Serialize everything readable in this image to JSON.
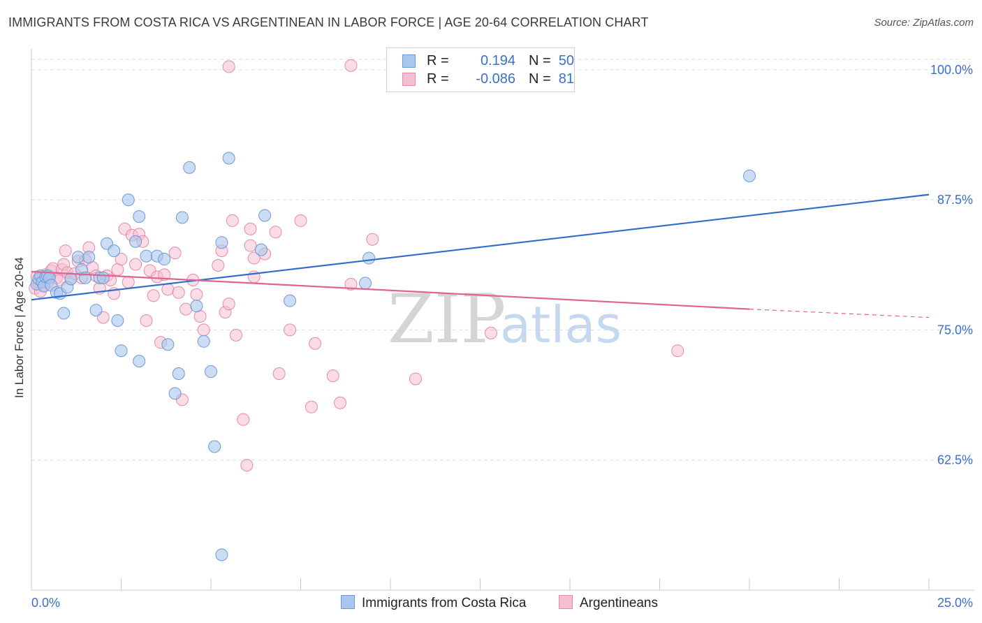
{
  "title": "IMMIGRANTS FROM COSTA RICA VS ARGENTINEAN IN LABOR FORCE | AGE 20-64 CORRELATION CHART",
  "source": "Source: ZipAtlas.com",
  "watermark": {
    "zip": "ZIP",
    "atlas": "atlas"
  },
  "legend": {
    "rows": [
      {
        "r_label": "R =",
        "r_value": "0.194",
        "n_label": "N =",
        "n_value": "50"
      },
      {
        "r_label": "R =",
        "r_value": "-0.086",
        "n_label": "N =",
        "n_value": "81"
      }
    ]
  },
  "colors": {
    "blue_fill": "#a9c6ef",
    "blue_stroke": "#6f99d6",
    "blue_line": "#2f6cc9",
    "pink_fill": "#f6bfd1",
    "pink_stroke": "#e889a8",
    "pink_line": "#e0648e",
    "tick_text": "#3b6fc9",
    "grid": "#dddddd"
  },
  "chart_data": {
    "type": "scatter",
    "title": "IMMIGRANTS FROM COSTA RICA VS ARGENTINEAN IN LABOR FORCE | AGE 20-64 CORRELATION CHART",
    "xlabel": "",
    "ylabel": "In Labor Force | Age 20-64",
    "xlim": [
      0,
      25
    ],
    "ylim": [
      50.0,
      102.0
    ],
    "x_tick_labels": [
      "0.0%",
      "25.0%"
    ],
    "y_ticks": [
      62.5,
      75.0,
      87.5,
      100.0
    ],
    "y_tick_labels": [
      "62.5%",
      "75.0%",
      "87.5%",
      "100.0%"
    ],
    "series": [
      {
        "name": "Immigrants from Costa Rica",
        "r": 0.194,
        "n": 50,
        "trend": {
          "x0": 0.0,
          "y0": 77.9,
          "x1": 25.0,
          "y1": 88.0
        },
        "points": [
          [
            0.15,
            79.4
          ],
          [
            0.2,
            79.9
          ],
          [
            0.25,
            80.2
          ],
          [
            0.3,
            79.6
          ],
          [
            0.35,
            79.2
          ],
          [
            0.4,
            80.1
          ],
          [
            0.45,
            80.2
          ],
          [
            0.5,
            80.0
          ],
          [
            0.55,
            79.3
          ],
          [
            0.7,
            78.6
          ],
          [
            0.8,
            78.5
          ],
          [
            0.9,
            76.6
          ],
          [
            1.0,
            79.1
          ],
          [
            1.1,
            79.9
          ],
          [
            1.3,
            82.0
          ],
          [
            1.4,
            80.8
          ],
          [
            1.5,
            80.0
          ],
          [
            1.6,
            82.0
          ],
          [
            1.8,
            76.9
          ],
          [
            1.9,
            80.0
          ],
          [
            2.0,
            80.0
          ],
          [
            2.1,
            83.3
          ],
          [
            2.3,
            82.6
          ],
          [
            2.4,
            75.9
          ],
          [
            2.5,
            73.0
          ],
          [
            2.9,
            83.5
          ],
          [
            3.0,
            72.0
          ],
          [
            3.2,
            82.1
          ],
          [
            3.5,
            82.1
          ],
          [
            3.7,
            81.8
          ],
          [
            3.8,
            73.6
          ],
          [
            4.0,
            68.9
          ],
          [
            4.1,
            70.8
          ],
          [
            4.2,
            85.8
          ],
          [
            4.4,
            90.6
          ],
          [
            4.6,
            77.3
          ],
          [
            4.8,
            73.9
          ],
          [
            5.0,
            71.0
          ],
          [
            5.1,
            63.8
          ],
          [
            5.3,
            83.4
          ],
          [
            5.5,
            91.5
          ],
          [
            5.3,
            53.4
          ],
          [
            6.4,
            82.7
          ],
          [
            6.5,
            86.0
          ],
          [
            7.2,
            77.8
          ],
          [
            9.4,
            81.9
          ],
          [
            9.3,
            79.5
          ],
          [
            20.0,
            89.8
          ],
          [
            2.7,
            87.5
          ],
          [
            3.0,
            85.9
          ]
        ]
      },
      {
        "name": "Argentineans",
        "r": -0.086,
        "n": 81,
        "trend": {
          "x0": 0.0,
          "y0": 80.6,
          "x1": 20.0,
          "y1": 77.0,
          "dash_x1": 25.0,
          "dash_y1": 76.2
        },
        "points": [
          [
            0.1,
            79.0
          ],
          [
            0.15,
            80.1
          ],
          [
            0.2,
            79.5
          ],
          [
            0.25,
            78.7
          ],
          [
            0.3,
            80.0
          ],
          [
            0.35,
            79.3
          ],
          [
            0.4,
            80.3
          ],
          [
            0.45,
            79.6
          ],
          [
            0.5,
            80.2
          ],
          [
            0.55,
            80.7
          ],
          [
            0.6,
            80.9
          ],
          [
            0.7,
            80.0
          ],
          [
            0.8,
            79.8
          ],
          [
            0.85,
            80.8
          ],
          [
            0.9,
            81.3
          ],
          [
            0.95,
            82.6
          ],
          [
            1.0,
            80.5
          ],
          [
            1.1,
            79.9
          ],
          [
            1.2,
            80.4
          ],
          [
            1.3,
            81.6
          ],
          [
            1.4,
            80.0
          ],
          [
            1.5,
            81.7
          ],
          [
            1.6,
            82.9
          ],
          [
            1.7,
            81.0
          ],
          [
            1.8,
            80.2
          ],
          [
            1.9,
            79.0
          ],
          [
            2.0,
            76.2
          ],
          [
            2.1,
            80.2
          ],
          [
            2.2,
            79.8
          ],
          [
            2.3,
            78.5
          ],
          [
            2.4,
            80.8
          ],
          [
            2.5,
            81.8
          ],
          [
            2.6,
            84.7
          ],
          [
            2.7,
            79.6
          ],
          [
            2.8,
            84.1
          ],
          [
            2.9,
            81.3
          ],
          [
            3.0,
            84.2
          ],
          [
            3.1,
            83.5
          ],
          [
            3.2,
            75.9
          ],
          [
            3.3,
            80.7
          ],
          [
            3.4,
            78.3
          ],
          [
            3.5,
            80.1
          ],
          [
            3.6,
            73.8
          ],
          [
            3.7,
            80.3
          ],
          [
            3.8,
            78.9
          ],
          [
            4.0,
            82.4
          ],
          [
            4.1,
            78.6
          ],
          [
            4.2,
            68.3
          ],
          [
            4.3,
            77.0
          ],
          [
            4.5,
            79.8
          ],
          [
            4.6,
            78.4
          ],
          [
            4.7,
            76.3
          ],
          [
            4.8,
            75.0
          ],
          [
            5.2,
            81.2
          ],
          [
            5.3,
            82.6
          ],
          [
            5.4,
            76.7
          ],
          [
            5.5,
            77.5
          ],
          [
            5.6,
            85.5
          ],
          [
            5.7,
            74.5
          ],
          [
            6.1,
            84.7
          ],
          [
            6.1,
            83.1
          ],
          [
            6.2,
            80.1
          ],
          [
            6.2,
            81.9
          ],
          [
            6.5,
            82.3
          ],
          [
            6.8,
            84.4
          ],
          [
            5.9,
            66.4
          ],
          [
            6.0,
            62.0
          ],
          [
            6.9,
            70.8
          ],
          [
            7.2,
            75.0
          ],
          [
            7.5,
            85.5
          ],
          [
            7.8,
            67.6
          ],
          [
            7.9,
            73.7
          ],
          [
            8.4,
            70.6
          ],
          [
            8.6,
            68.0
          ],
          [
            8.9,
            79.4
          ],
          [
            9.5,
            83.7
          ],
          [
            10.7,
            70.3
          ],
          [
            12.8,
            74.7
          ],
          [
            18.0,
            73.0
          ],
          [
            5.5,
            100.3
          ],
          [
            8.9,
            100.4
          ]
        ]
      }
    ]
  },
  "bottom_legend": [
    {
      "label": "Immigrants from Costa Rica"
    },
    {
      "label": "Argentineans"
    }
  ]
}
